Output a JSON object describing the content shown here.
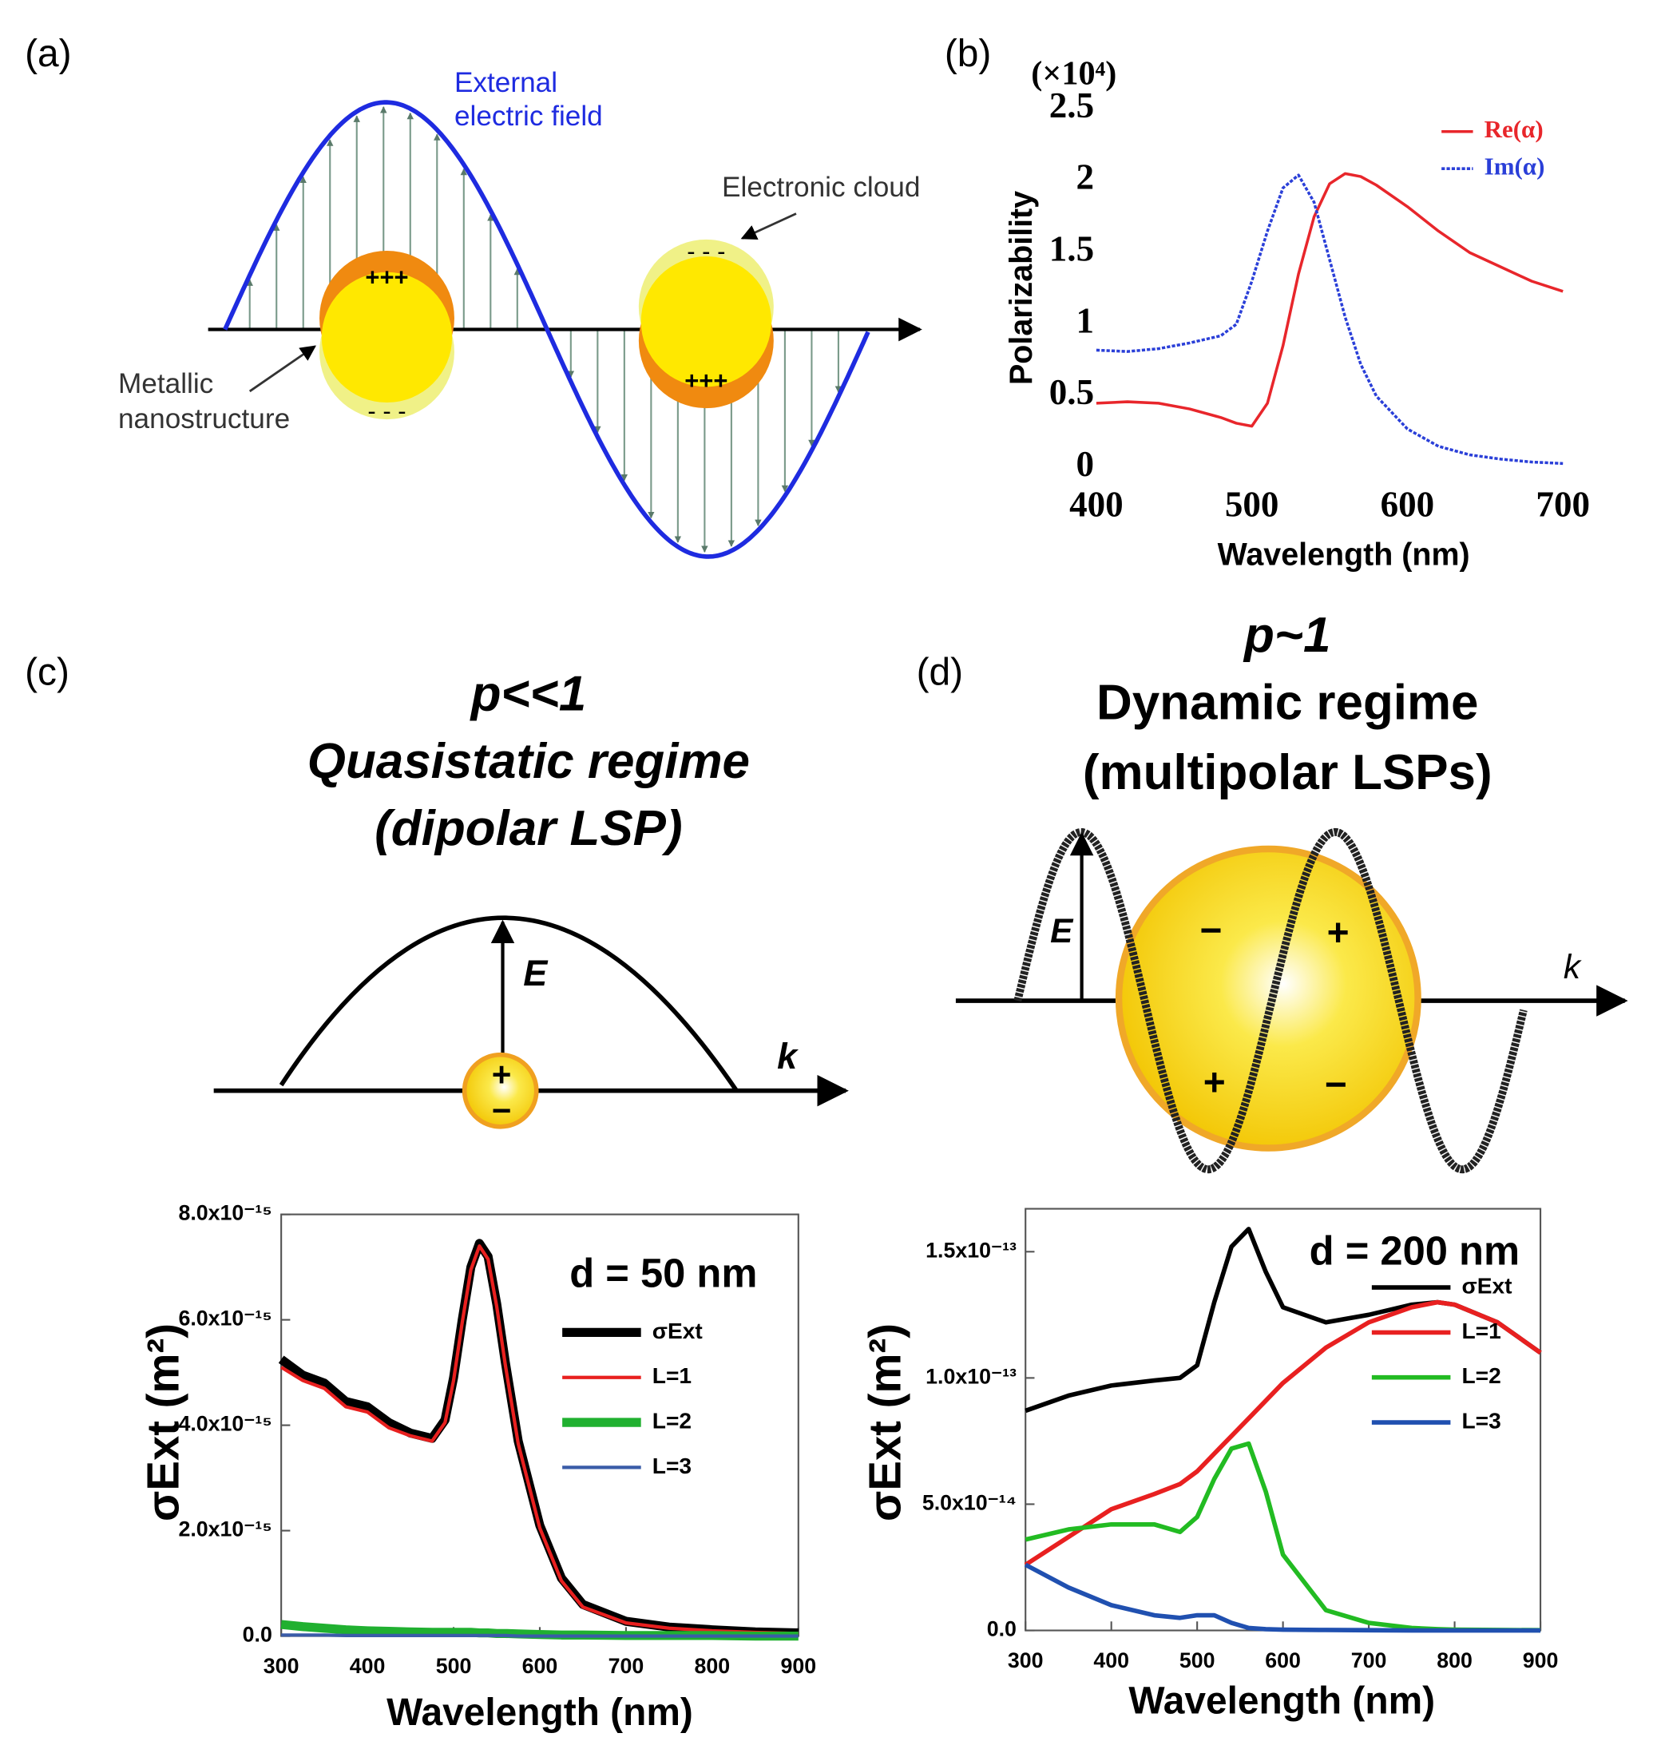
{
  "figure": {
    "a": {
      "label": "(a)",
      "field": [
        "External",
        "electric field"
      ],
      "cloud": "Electronic cloud",
      "metal": [
        "Metallic",
        "nanostructure"
      ],
      "plus": "+++",
      "minus": "- - -"
    },
    "b": {
      "label": "(b)"
    },
    "c": {
      "label": "(c)",
      "title": [
        "p<<1",
        "Quasistatic regime",
        "(dipolar LSP)"
      ],
      "E": "E",
      "k": "k",
      "plus": "+",
      "minus": "−"
    },
    "d": {
      "label": "(d)",
      "title": [
        "p~1",
        "Dynamic regime",
        "(multipolar LSPs)"
      ],
      "E": "E",
      "k": "k",
      "plus": "+",
      "minus": "−"
    }
  },
  "chart_data": [
    {
      "type": "line",
      "ylabel_note": "(×10⁴)",
      "xlabel": "Wavelength (nm)",
      "ylabel": "Polarizability",
      "x": [
        400,
        420,
        440,
        460,
        480,
        490,
        500,
        510,
        520,
        530,
        540,
        550,
        560,
        570,
        580,
        600,
        620,
        640,
        660,
        680,
        700
      ],
      "series": [
        {
          "name": "Re(α)",
          "color": "#e8262b",
          "values": [
            0.45,
            0.46,
            0.45,
            0.41,
            0.35,
            0.31,
            0.29,
            0.45,
            0.85,
            1.35,
            1.75,
            1.98,
            2.05,
            2.03,
            1.97,
            1.82,
            1.65,
            1.5,
            1.4,
            1.3,
            1.23
          ]
        },
        {
          "name": "Im(α)",
          "color": "#2a3fd8",
          "values": [
            0.82,
            0.81,
            0.83,
            0.87,
            0.92,
            1.0,
            1.3,
            1.65,
            1.95,
            2.04,
            1.85,
            1.45,
            1.05,
            0.72,
            0.5,
            0.27,
            0.15,
            0.09,
            0.06,
            0.04,
            0.03
          ]
        }
      ],
      "xlim": [
        400,
        700
      ],
      "xticks": [
        400,
        500,
        600,
        700
      ],
      "ylim": [
        0,
        2.5
      ],
      "yticks": [
        0,
        0.5,
        1,
        1.5,
        2,
        2.5
      ],
      "legend": "upper right"
    },
    {
      "type": "line",
      "annotation": "d = 50 nm",
      "xlabel": "Wavelength (nm)",
      "ylabel": "σExt (m²)",
      "x": [
        300,
        325,
        350,
        375,
        400,
        425,
        450,
        475,
        490,
        500,
        510,
        520,
        530,
        540,
        550,
        560,
        575,
        600,
        625,
        650,
        700,
        750,
        800,
        850,
        900
      ],
      "series": [
        {
          "name": "σExt",
          "color": "#000000",
          "values": [
            5.25e-15,
            4.95e-15,
            4.8e-15,
            4.45e-15,
            4.35e-15,
            4.05e-15,
            3.85e-15,
            3.75e-15,
            4.1e-15,
            4.9e-15,
            6e-15,
            7e-15,
            7.45e-15,
            7.2e-15,
            6.3e-15,
            5.2e-15,
            3.7e-15,
            2.1e-15,
            1.1e-15,
            6e-16,
            2.8e-16,
            1.7e-16,
            1.2e-16,
            8e-17,
            6e-17
          ]
        },
        {
          "name": "L=1",
          "color": "#e8201f",
          "values": [
            5.1e-15,
            4.85e-15,
            4.7e-15,
            4.35e-15,
            4.25e-15,
            3.95e-15,
            3.8e-15,
            3.7e-15,
            4.05e-15,
            4.85e-15,
            5.95e-15,
            6.95e-15,
            7.4e-15,
            7.15e-15,
            6.25e-15,
            5.15e-15,
            3.65e-15,
            2.05e-15,
            1.05e-15,
            5.5e-16,
            2.5e-16,
            1.5e-16,
            1e-16,
            7e-17,
            5e-17
          ]
        },
        {
          "name": "L=2",
          "color": "#20b030",
          "values": [
            2.2e-16,
            1.8e-16,
            1.5e-16,
            1.2e-16,
            1e-16,
            9e-17,
            8e-17,
            7e-17,
            7e-17,
            7e-17,
            7e-17,
            7e-17,
            6e-17,
            6e-17,
            5e-17,
            5e-17,
            4e-17,
            3e-17,
            2e-17,
            2e-17,
            1e-17,
            1e-17,
            1e-17,
            0,
            0
          ]
        },
        {
          "name": "L=3",
          "color": "#3a5ca8",
          "values": [
            2e-17,
            2e-17,
            2e-17,
            1e-17,
            1e-17,
            1e-17,
            1e-17,
            1e-17,
            1e-17,
            1e-17,
            1e-17,
            1e-17,
            1e-17,
            1e-17,
            1e-17,
            1e-17,
            0,
            0,
            0,
            0,
            0,
            0,
            0,
            0,
            0
          ]
        }
      ],
      "xlim": [
        300,
        900
      ],
      "xticks": [
        300,
        400,
        500,
        600,
        700,
        800,
        900
      ],
      "ylim": [
        0,
        8e-15
      ],
      "yticks": [
        {
          "value": 0,
          "label": "0.0"
        },
        {
          "value": 2e-15,
          "label": "2.0x10⁻¹⁵"
        },
        {
          "value": 4e-15,
          "label": "4.0x10⁻¹⁵"
        },
        {
          "value": 6e-15,
          "label": "6.0x10⁻¹⁵"
        },
        {
          "value": 8e-15,
          "label": "8.0x10⁻¹⁵"
        }
      ],
      "legend": "upper right"
    },
    {
      "type": "line",
      "annotation": "d = 200 nm",
      "xlabel": "Wavelength (nm)",
      "ylabel": "σExt (m²)",
      "x": [
        300,
        350,
        400,
        450,
        480,
        500,
        520,
        540,
        560,
        580,
        600,
        650,
        700,
        750,
        780,
        800,
        850,
        900
      ],
      "series": [
        {
          "name": "σExt",
          "color": "#000000",
          "values": [
            8.7e-14,
            9.3e-14,
            9.7e-14,
            9.9e-14,
            1e-13,
            1.05e-13,
            1.3e-13,
            1.52e-13,
            1.59e-13,
            1.42e-13,
            1.28e-13,
            1.22e-13,
            1.25e-13,
            1.29e-13,
            1.3e-13,
            1.29e-13,
            1.22e-13,
            1.1e-13
          ]
        },
        {
          "name": "L=1",
          "color": "#e82020",
          "values": [
            2.6e-14,
            3.7e-14,
            4.8e-14,
            5.4e-14,
            5.8e-14,
            6.3e-14,
            7e-14,
            7.7e-14,
            8.4e-14,
            9.1e-14,
            9.8e-14,
            1.12e-13,
            1.22e-13,
            1.28e-13,
            1.3e-13,
            1.29e-13,
            1.22e-13,
            1.1e-13
          ]
        },
        {
          "name": "L=2",
          "color": "#22bb22",
          "values": [
            3.6e-14,
            4e-14,
            4.2e-14,
            4.2e-14,
            3.9e-14,
            4.5e-14,
            6e-14,
            7.2e-14,
            7.4e-14,
            5.5e-14,
            3e-14,
            8e-15,
            3e-15,
            1e-15,
            5e-16,
            3e-16,
            2e-16,
            1e-16
          ]
        },
        {
          "name": "L=3",
          "color": "#2050b0",
          "values": [
            2.6e-14,
            1.7e-14,
            1e-14,
            6e-15,
            5e-15,
            6e-15,
            6e-15,
            3e-15,
            1e-15,
            5e-16,
            3e-16,
            2e-16,
            1e-16,
            0,
            0,
            0,
            0,
            0
          ]
        }
      ],
      "xlim": [
        300,
        900
      ],
      "xticks": [
        300,
        400,
        500,
        600,
        700,
        800,
        900
      ],
      "ylim": [
        0,
        1.67e-13
      ],
      "yticks": [
        {
          "value": 0,
          "label": "0.0"
        },
        {
          "value": 5e-14,
          "label": "5.0x10⁻¹⁴"
        },
        {
          "value": 1e-13,
          "label": "1.0x10⁻¹³"
        },
        {
          "value": 1.5e-13,
          "label": "1.5x10⁻¹³"
        }
      ],
      "legend": "lower right"
    }
  ]
}
